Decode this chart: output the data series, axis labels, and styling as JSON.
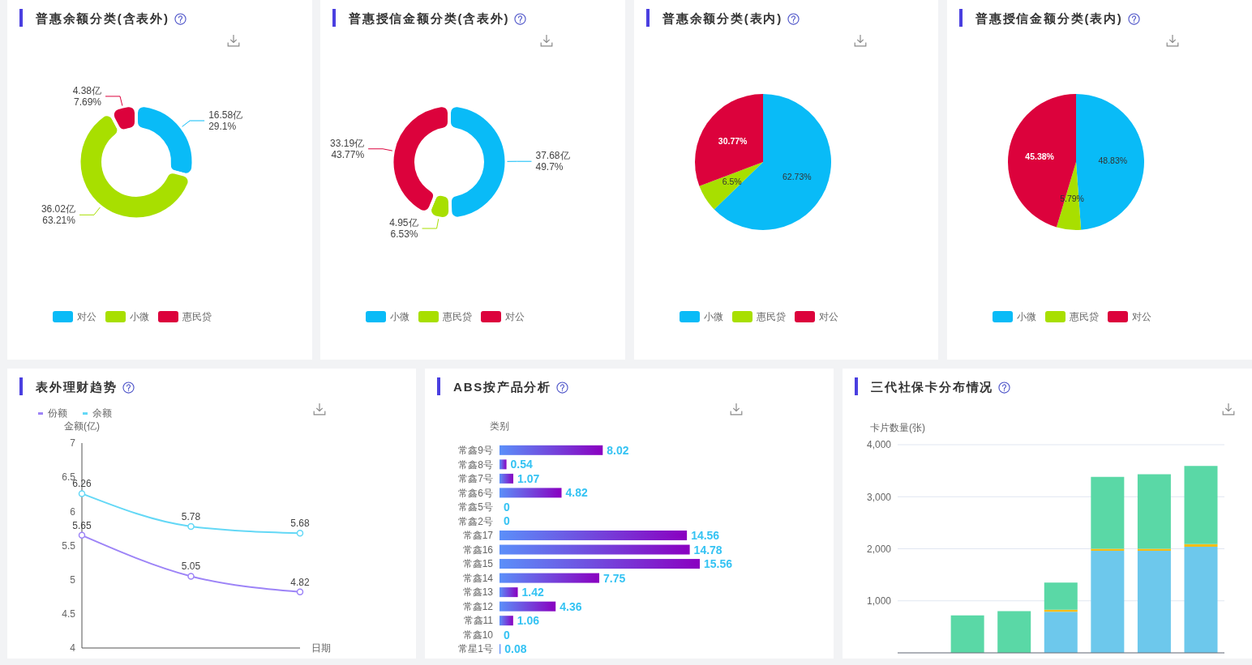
{
  "chart_data": [
    {
      "type": "donut",
      "title": "普惠余额分类(含表外)",
      "categories": [
        "对公",
        "小微",
        "惠民贷"
      ],
      "values": [
        16.58,
        36.02,
        4.38
      ],
      "colors": [
        "#09bbf7",
        "#a8df00",
        "#dc023c"
      ],
      "value_labels": [
        "16.58亿\n29.1%",
        "36.02亿\n63.21%",
        "4.38亿\n7.69%"
      ],
      "legend": "bottom"
    },
    {
      "type": "donut",
      "title": "普惠授信金额分类(含表外)",
      "categories": [
        "小微",
        "惠民贷",
        "对公"
      ],
      "values": [
        37.68,
        4.95,
        33.19
      ],
      "colors": [
        "#09bbf7",
        "#a8df00",
        "#dc023c"
      ],
      "value_labels": [
        "37.68亿\n49.7%",
        "4.95亿\n6.53%",
        "33.19亿\n43.77%"
      ],
      "legend": "bottom"
    },
    {
      "type": "pie",
      "title": "普惠余额分类(表内)",
      "categories": [
        "小微",
        "惠民贷",
        "对公"
      ],
      "values": [
        62.73,
        6.5,
        30.77
      ],
      "colors": [
        "#09bbf7",
        "#a8df00",
        "#dc023c"
      ],
      "value_labels": [
        "62.73%",
        "6.5%",
        "30.77%"
      ],
      "legend": "bottom"
    },
    {
      "type": "pie",
      "title": "普惠授信金额分类(表内)",
      "categories": [
        "小微",
        "惠民贷",
        "对公"
      ],
      "values": [
        48.83,
        5.79,
        45.38
      ],
      "colors": [
        "#09bbf7",
        "#a8df00",
        "#dc023c"
      ],
      "value_labels": [
        "48.83%",
        "5.79%",
        "45.38%"
      ],
      "legend": "bottom"
    },
    {
      "type": "line",
      "title": "表外理财趋势",
      "ylabel": "金额(亿)",
      "xlabel": "日期",
      "categories": [
        null,
        null,
        null
      ],
      "series": [
        {
          "name": "份额",
          "color": "#9d84f7",
          "values": [
            5.65,
            5.05,
            4.82
          ]
        },
        {
          "name": "余额",
          "color": "#64d8f6",
          "values": [
            6.26,
            5.78,
            5.68
          ]
        }
      ],
      "ylim": [
        4,
        7
      ],
      "yticks": [
        4,
        4.5,
        5,
        5.5,
        6,
        6.5,
        7
      ],
      "marker": "circle",
      "data_labels": true,
      "legend": "top left"
    },
    {
      "type": "bar",
      "orientation": "horizontal",
      "title": "ABS按产品分析",
      "ylabel": "类别",
      "categories": [
        "常鑫9号",
        "常鑫8号",
        "常鑫7号",
        "常鑫6号",
        "常鑫5号",
        "常鑫2号",
        "常鑫17",
        "常鑫16",
        "常鑫15",
        "常鑫14",
        "常鑫13",
        "常鑫12",
        "常鑫11",
        "常鑫10",
        "常星1号"
      ],
      "values": [
        8.02,
        0.54,
        1.07,
        4.82,
        0,
        0,
        14.56,
        14.78,
        15.56,
        7.75,
        1.42,
        4.36,
        1.06,
        0,
        0.08
      ],
      "color": "#5b8ff9",
      "data_labels": true,
      "tick_labels": "y"
    },
    {
      "type": "bar",
      "stacked": true,
      "title": "三代社保卡分布情况",
      "ylabel": "卡片数量(张)",
      "categories": [
        null,
        null,
        null,
        null,
        null,
        null,
        null
      ],
      "series": [
        {
          "color": "#6dc8ec",
          "values": [
            null,
            null,
            null,
            790,
            1960,
            1960,
            2040
          ]
        },
        {
          "color": "#f6bd16",
          "values": [
            null,
            null,
            null,
            40,
            40,
            40,
            50
          ]
        },
        {
          "color": "#5ad8a6",
          "values": [
            null,
            720,
            800,
            520,
            1380,
            1430,
            1500
          ]
        }
      ],
      "ylim": [
        0,
        4000
      ],
      "yticks": [
        {
          "value": 1000,
          "label": "1,000"
        },
        {
          "value": 2000,
          "label": "2,000"
        },
        {
          "value": 3000,
          "label": "3,000"
        },
        {
          "value": 4000,
          "label": "4,000"
        }
      ],
      "grid": "y",
      "tick_labels": "y"
    }
  ]
}
